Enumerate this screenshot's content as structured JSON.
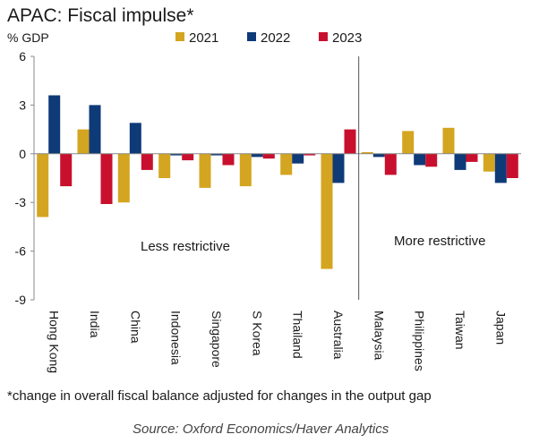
{
  "chart_data": {
    "type": "bar",
    "title": "APAC: Fiscal impulse*",
    "unit_label": "% GDP",
    "categories": [
      "Hong Kong",
      "India",
      "China",
      "Indonesia",
      "Singapore",
      "S Korea",
      "Thailand",
      "Australia",
      "Malaysia",
      "Philippines",
      "Taiwan",
      "Japan"
    ],
    "series": [
      {
        "name": "2021",
        "color": "#d4a520",
        "values": [
          -3.9,
          1.5,
          -3.0,
          -1.5,
          -2.1,
          -2.0,
          -1.3,
          -7.1,
          0.1,
          1.4,
          1.6,
          -1.1
        ]
      },
      {
        "name": "2022",
        "color": "#0f3a78",
        "values": [
          3.6,
          3.0,
          1.9,
          -0.1,
          -0.1,
          -0.2,
          -0.6,
          -1.8,
          -0.2,
          -0.7,
          -1.0,
          -1.8
        ]
      },
      {
        "name": "2023",
        "color": "#c8102e",
        "values": [
          -2.0,
          -3.1,
          -1.0,
          -0.4,
          -0.7,
          -0.3,
          -0.1,
          1.5,
          -1.3,
          -0.8,
          -0.5,
          -1.5
        ]
      }
    ],
    "ylim": [
      -9,
      6
    ],
    "yticks": [
      6,
      3,
      0,
      -3,
      -6,
      -9
    ],
    "grid": false,
    "legend_position": "top",
    "divider_after_category": "Australia",
    "annotations": {
      "left": "Less restrictive",
      "right": "More restrictive"
    }
  },
  "footnote": "*change in overall fiscal balance adjusted for changes in the output gap",
  "source": "Source: Oxford Economics/Haver Analytics"
}
